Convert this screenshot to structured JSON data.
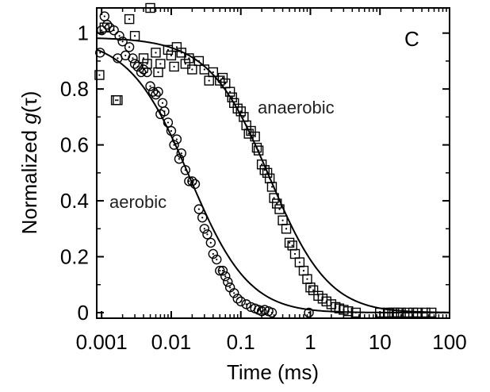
{
  "chart_data": {
    "type": "scatter",
    "panel_label": "C",
    "xlabel": "Time (ms)",
    "ylabel_prefix": "Normalized ",
    "ylabel_italic": "g",
    "ylabel_suffix": "(τ)",
    "xscale": "log",
    "xlim": [
      0.00085,
      100
    ],
    "ylim": [
      -0.02,
      1.09
    ],
    "x_ticks": [
      0.001,
      0.01,
      0.1,
      1,
      10,
      100
    ],
    "x_tick_labels": [
      "0.001",
      "0.01",
      "0.1",
      "1",
      "10",
      "100"
    ],
    "y_ticks": [
      0,
      0.2,
      0.4,
      0.6,
      0.8,
      1
    ],
    "y_tick_labels": [
      "0",
      "0.2",
      "0.4",
      "0.6",
      "0.8",
      "1"
    ],
    "grid": false,
    "series": [
      {
        "name": "aerobic",
        "marker": "circle-dot",
        "points": [
          [
            0.00095,
            0.93
          ],
          [
            0.001,
            1.01
          ],
          [
            0.0011,
            1.06
          ],
          [
            0.0012,
            1.03
          ],
          [
            0.0013,
            1.02
          ],
          [
            0.0015,
            1.01
          ],
          [
            0.0017,
            0.91
          ],
          [
            0.0018,
            0.99
          ],
          [
            0.002,
            0.97
          ],
          [
            0.0022,
            0.92
          ],
          [
            0.0025,
            0.95
          ],
          [
            0.0028,
            0.91
          ],
          [
            0.003,
            0.89
          ],
          [
            0.0033,
            0.88
          ],
          [
            0.0037,
            0.86
          ],
          [
            0.004,
            0.87
          ],
          [
            0.0045,
            0.86
          ],
          [
            0.005,
            0.81
          ],
          [
            0.0055,
            0.79
          ],
          [
            0.006,
            0.78
          ],
          [
            0.0065,
            0.79
          ],
          [
            0.007,
            0.71
          ],
          [
            0.0075,
            0.75
          ],
          [
            0.008,
            0.72
          ],
          [
            0.009,
            0.68
          ],
          [
            0.01,
            0.65
          ],
          [
            0.011,
            0.6
          ],
          [
            0.012,
            0.62
          ],
          [
            0.013,
            0.55
          ],
          [
            0.014,
            0.57
          ],
          [
            0.016,
            0.51
          ],
          [
            0.018,
            0.47
          ],
          [
            0.02,
            0.47
          ],
          [
            0.022,
            0.46
          ],
          [
            0.025,
            0.37
          ],
          [
            0.028,
            0.34
          ],
          [
            0.03,
            0.3
          ],
          [
            0.033,
            0.28
          ],
          [
            0.037,
            0.25
          ],
          [
            0.04,
            0.21
          ],
          [
            0.045,
            0.19
          ],
          [
            0.05,
            0.15
          ],
          [
            0.055,
            0.15
          ],
          [
            0.06,
            0.13
          ],
          [
            0.065,
            0.11
          ],
          [
            0.07,
            0.09
          ],
          [
            0.08,
            0.07
          ],
          [
            0.09,
            0.05
          ],
          [
            0.1,
            0.04
          ],
          [
            0.12,
            0.03
          ],
          [
            0.14,
            0.02
          ],
          [
            0.16,
            0.015
          ],
          [
            0.18,
            0.01
          ],
          [
            0.2,
            0.005
          ],
          [
            0.22,
            0.01
          ],
          [
            0.25,
            0.005
          ],
          [
            0.28,
            0.0
          ],
          [
            0.95,
            0.0
          ]
        ]
      },
      {
        "name": "anaerobic",
        "marker": "square-dot",
        "points": [
          [
            0.00093,
            0.85
          ],
          [
            0.0011,
            1.02
          ],
          [
            0.0016,
            0.76
          ],
          [
            0.0017,
            0.76
          ],
          [
            0.0025,
            1.05
          ],
          [
            0.003,
            0.99
          ],
          [
            0.004,
            0.91
          ],
          [
            0.0045,
            0.89
          ],
          [
            0.005,
            1.09
          ],
          [
            0.006,
            0.93
          ],
          [
            0.0065,
            0.86
          ],
          [
            0.007,
            0.89
          ],
          [
            0.009,
            0.94
          ],
          [
            0.01,
            0.92
          ],
          [
            0.011,
            0.88
          ],
          [
            0.012,
            0.95
          ],
          [
            0.014,
            0.93
          ],
          [
            0.016,
            0.89
          ],
          [
            0.018,
            0.91
          ],
          [
            0.02,
            0.87
          ],
          [
            0.025,
            0.9
          ],
          [
            0.03,
            0.87
          ],
          [
            0.035,
            0.83
          ],
          [
            0.04,
            0.86
          ],
          [
            0.05,
            0.83
          ],
          [
            0.055,
            0.84
          ],
          [
            0.06,
            0.82
          ],
          [
            0.07,
            0.79
          ],
          [
            0.075,
            0.77
          ],
          [
            0.08,
            0.75
          ],
          [
            0.09,
            0.73
          ],
          [
            0.1,
            0.72
          ],
          [
            0.11,
            0.7
          ],
          [
            0.12,
            0.67
          ],
          [
            0.13,
            0.64
          ],
          [
            0.14,
            0.65
          ],
          [
            0.16,
            0.63
          ],
          [
            0.17,
            0.59
          ],
          [
            0.18,
            0.58
          ],
          [
            0.2,
            0.53
          ],
          [
            0.22,
            0.51
          ],
          [
            0.24,
            0.5
          ],
          [
            0.26,
            0.48
          ],
          [
            0.28,
            0.45
          ],
          [
            0.3,
            0.41
          ],
          [
            0.33,
            0.39
          ],
          [
            0.36,
            0.37
          ],
          [
            0.4,
            0.33
          ],
          [
            0.45,
            0.3
          ],
          [
            0.5,
            0.25
          ],
          [
            0.55,
            0.24
          ],
          [
            0.6,
            0.21
          ],
          [
            0.7,
            0.18
          ],
          [
            0.8,
            0.15
          ],
          [
            0.9,
            0.12
          ],
          [
            1.0,
            0.09
          ],
          [
            1.1,
            0.08
          ],
          [
            1.3,
            0.06
          ],
          [
            1.5,
            0.05
          ],
          [
            1.7,
            0.04
          ],
          [
            2.0,
            0.03
          ],
          [
            2.3,
            0.02
          ],
          [
            2.6,
            0.015
          ],
          [
            3.0,
            0.01
          ],
          [
            3.5,
            0.005
          ],
          [
            4.5,
            0.0
          ],
          [
            10,
            0.0
          ],
          [
            13,
            0.0
          ],
          [
            15,
            0.0
          ],
          [
            16,
            0.0
          ],
          [
            18,
            0.0
          ],
          [
            20,
            0.0
          ],
          [
            25,
            0.0
          ],
          [
            30,
            0.0
          ],
          [
            35,
            0.0
          ],
          [
            45,
            0.0
          ],
          [
            55,
            0.0
          ]
        ]
      }
    ],
    "fits": [
      {
        "name": "aerobic",
        "tau": 0.0185,
        "amplitude": 0.985
      },
      {
        "name": "anaerobic",
        "tau": 0.26,
        "amplitude": 0.985
      }
    ],
    "annotations": [
      {
        "text": "aerobic",
        "series": "aerobic"
      },
      {
        "text": "anaerobic",
        "series": "anaerobic"
      }
    ]
  }
}
